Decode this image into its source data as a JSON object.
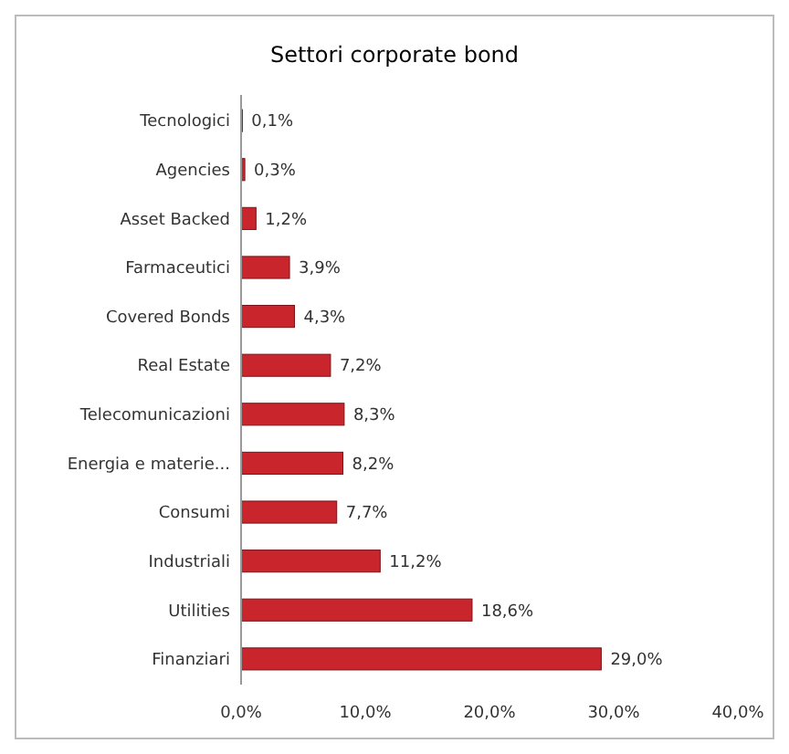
{
  "chart_data": {
    "type": "bar",
    "orientation": "horizontal",
    "title": "Settori corporate bond",
    "categories": [
      "Tecnologici",
      "Agencies",
      "Asset Backed",
      "Farmaceutici",
      "Covered Bonds",
      "Real Estate",
      "Telecomunicazioni",
      "Energia e materie...",
      "Consumi",
      "Industriali",
      "Utilities",
      "Finanziari"
    ],
    "values": [
      0.1,
      0.3,
      1.2,
      3.9,
      4.3,
      7.2,
      8.3,
      8.2,
      7.7,
      11.2,
      18.6,
      29.0
    ],
    "value_labels": [
      "0,1%",
      "0,3%",
      "1,2%",
      "3,9%",
      "4,3%",
      "7,2%",
      "8,3%",
      "8,2%",
      "7,7%",
      "11,2%",
      "18,6%",
      "29,0%"
    ],
    "color": "#c8262c",
    "xlim": [
      0,
      40
    ],
    "xticks": [
      {
        "value": 0,
        "label": "0,0%"
      },
      {
        "value": 10,
        "label": "10,0%"
      },
      {
        "value": 20,
        "label": "20,0%"
      },
      {
        "value": 30,
        "label": "30,0%"
      },
      {
        "value": 40,
        "label": "40,0%"
      }
    ],
    "grid": false
  }
}
